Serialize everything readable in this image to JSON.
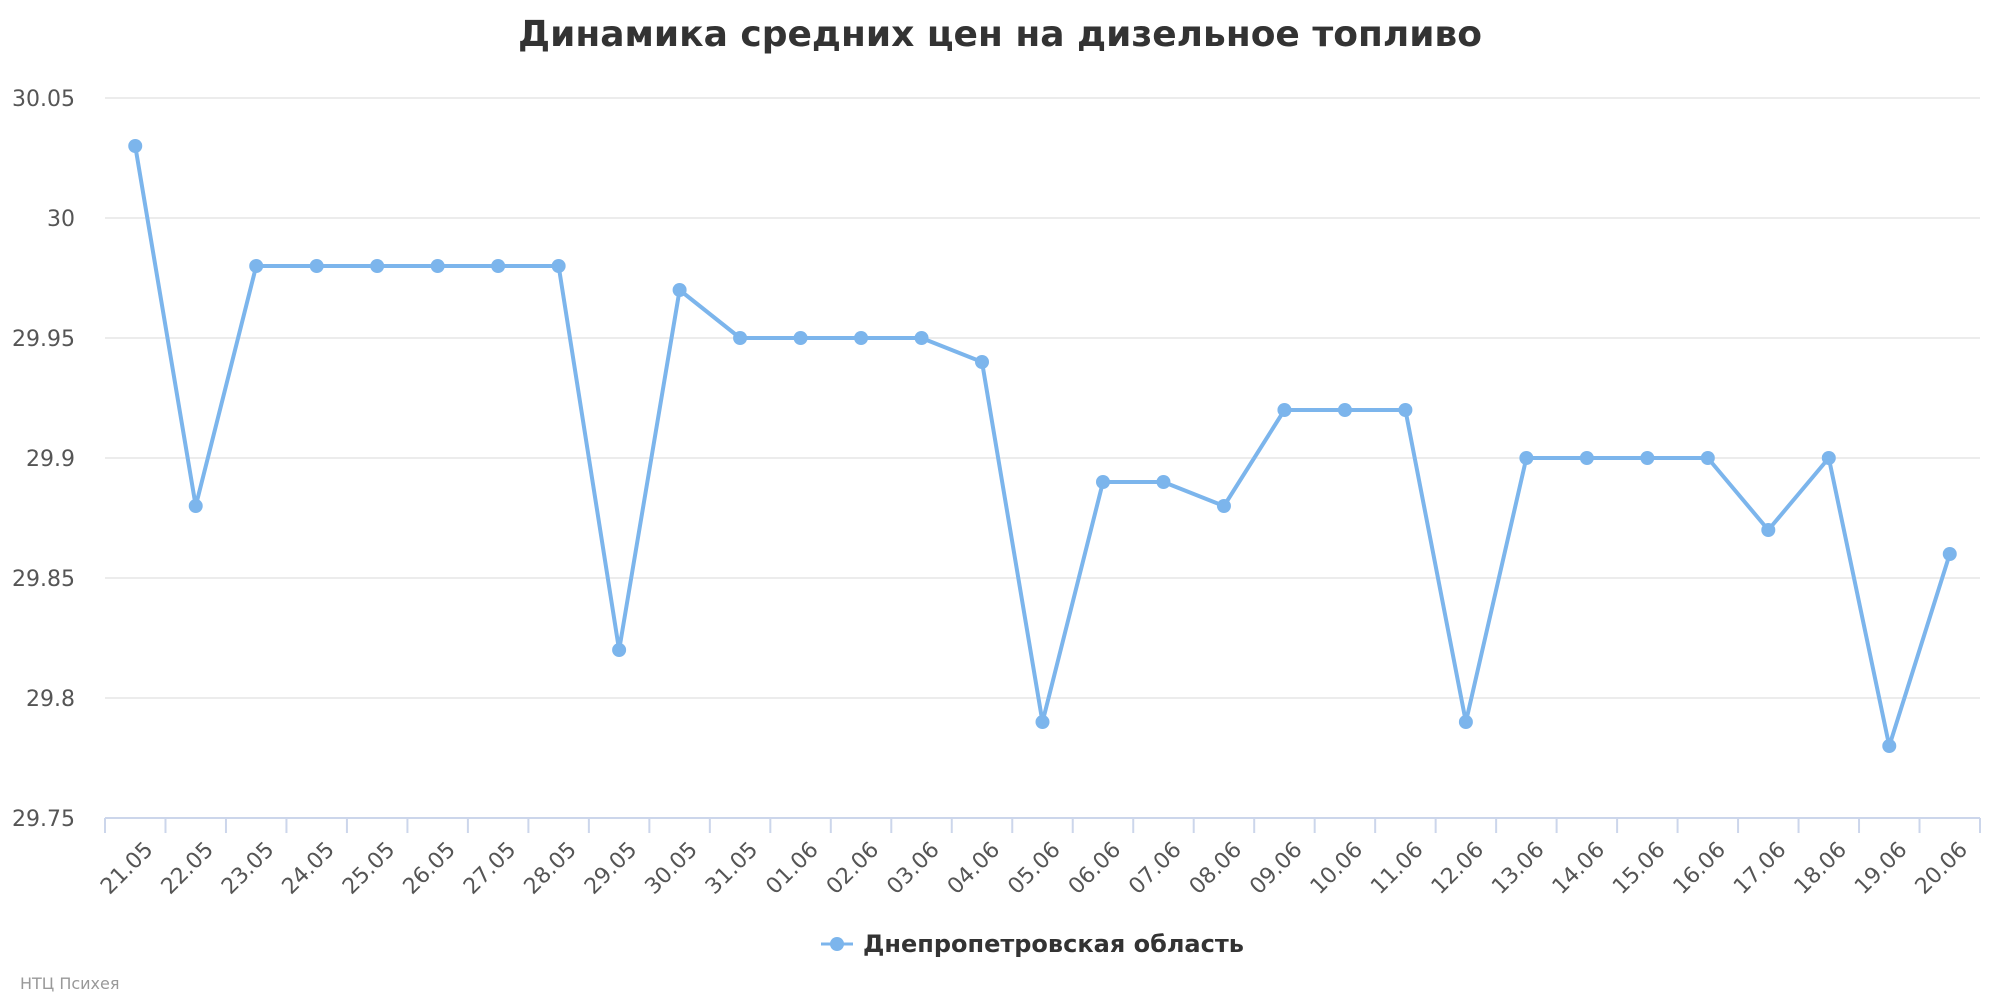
{
  "chart_data": {
    "type": "line",
    "title": "Динамика средних цен на дизельное топливо",
    "xlabel": "",
    "ylabel": "",
    "categories": [
      "21.05",
      "22.05",
      "23.05",
      "24.05",
      "25.05",
      "26.05",
      "27.05",
      "28.05",
      "29.05",
      "30.05",
      "31.05",
      "01.06",
      "02.06",
      "03.06",
      "04.06",
      "05.06",
      "06.06",
      "07.06",
      "08.06",
      "09.06",
      "10.06",
      "11.06",
      "12.06",
      "13.06",
      "14.06",
      "15.06",
      "16.06",
      "17.06",
      "18.06",
      "19.06",
      "20.06"
    ],
    "series": [
      {
        "name": "Днепропетровская область",
        "color": "#7cb5ec",
        "values": [
          30.03,
          29.88,
          29.98,
          29.98,
          29.98,
          29.98,
          29.98,
          29.98,
          29.82,
          29.97,
          29.95,
          29.95,
          29.95,
          29.95,
          29.94,
          29.79,
          29.89,
          29.89,
          29.88,
          29.92,
          29.92,
          29.92,
          29.79,
          29.9,
          29.9,
          29.9,
          29.9,
          29.87,
          29.9,
          29.78,
          29.86
        ]
      }
    ],
    "ylim": [
      29.75,
      30.05
    ],
    "yticks": [
      "29.75",
      "29.8",
      "29.85",
      "29.9",
      "29.95",
      "30",
      "30.05"
    ],
    "grid": true,
    "legend_position": "bottom-center"
  },
  "credits": "НТЦ Психея"
}
